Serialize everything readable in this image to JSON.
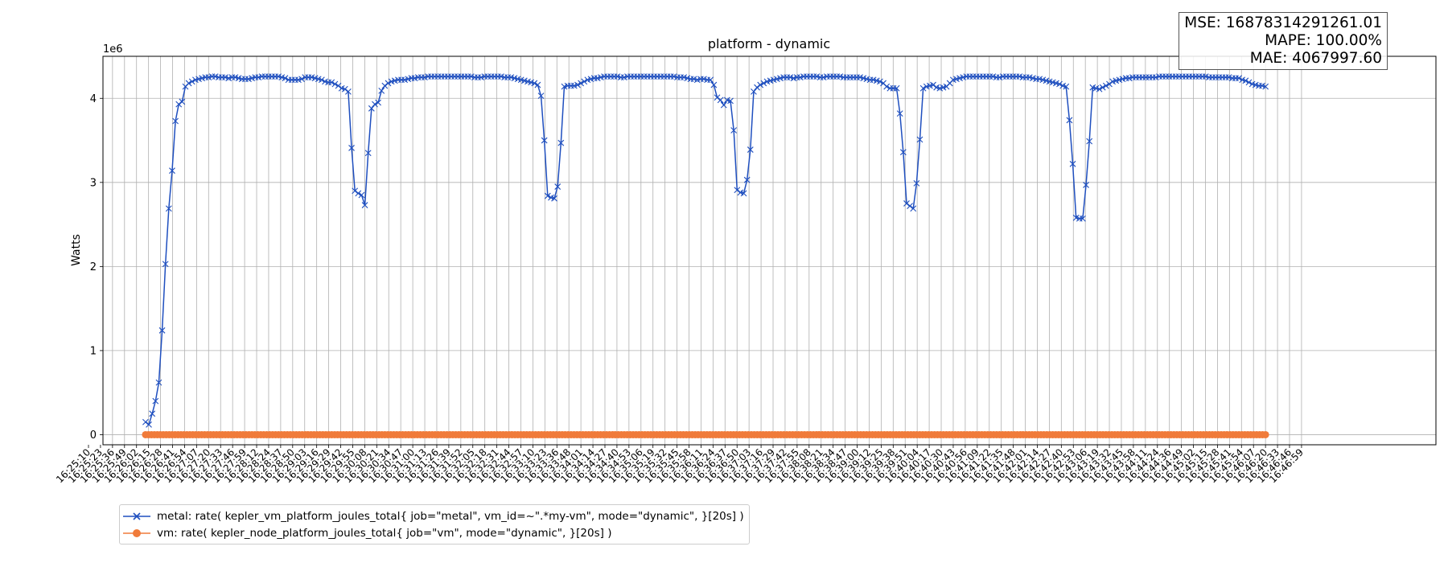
{
  "chart_data": {
    "type": "line",
    "title": "platform - dynamic",
    "xlabel": "",
    "ylabel": "Watts",
    "y_offset_label": "1e6",
    "ylim": [
      -0.12,
      4.5
    ],
    "yticks": [
      0,
      1,
      2,
      3,
      4
    ],
    "grid": true,
    "legend_position": "lower-left, outside",
    "stats": {
      "mse": "MSE: 16878314291261.01",
      "mape": "MAPE: 100.00%",
      "mae": "MAE: 4067997.60"
    },
    "x_tick_labels": [
      "16:25:10",
      "16:25:23",
      "16:25:36",
      "16:25:49",
      "16:26:02",
      "16:26:15",
      "16:26:28",
      "16:26:41",
      "16:26:54",
      "16:27:07",
      "16:27:20",
      "16:27:33",
      "16:27:46",
      "16:27:59",
      "16:28:12",
      "16:28:24",
      "16:28:37",
      "16:28:50",
      "16:29:03",
      "16:29:16",
      "16:29:29",
      "16:29:42",
      "16:29:55",
      "16:30:08",
      "16:30:21",
      "16:30:34",
      "16:30:47",
      "16:31:00",
      "16:31:13",
      "16:31:26",
      "16:31:39",
      "16:31:52",
      "16:32:05",
      "16:32:18",
      "16:32:31",
      "16:32:44",
      "16:32:57",
      "16:33:10",
      "16:33:23",
      "16:33:36",
      "16:33:48",
      "16:34:01",
      "16:34:14",
      "16:34:27",
      "16:34:40",
      "16:34:53",
      "16:35:06",
      "16:35:19",
      "16:35:32",
      "16:35:45",
      "16:35:58",
      "16:36:11",
      "16:36:24",
      "16:36:37",
      "16:36:50",
      "16:37:03",
      "16:37:16",
      "16:37:29",
      "16:37:42",
      "16:37:55",
      "16:38:08",
      "16:38:21",
      "16:38:34",
      "16:38:47",
      "16:39:00",
      "16:39:12",
      "16:39:25",
      "16:39:38",
      "16:39:51",
      "16:40:04",
      "16:40:17",
      "16:40:30",
      "16:40:43",
      "16:40:56",
      "16:41:09",
      "16:41:22",
      "16:41:35",
      "16:41:48",
      "16:42:01",
      "16:42:14",
      "16:42:27",
      "16:42:40",
      "16:42:53",
      "16:43:06",
      "16:43:19",
      "16:43:32",
      "16:43:45",
      "16:43:58",
      "16:44:11",
      "16:44:24",
      "16:44:36",
      "16:44:49",
      "16:45:02",
      "16:45:15",
      "16:45:28",
      "16:45:41",
      "16:45:54",
      "16:46:07",
      "16:46:20",
      "16:46:33",
      "16:46:46",
      "16:46:59"
    ],
    "series": [
      {
        "name": "metal: rate( kepler_vm_platform_joules_total{ job=\"metal\", vm_id=~\".*my-vm\", mode=\"dynamic\", }[20s] )",
        "color": "#1f4fbf",
        "marker": "x",
        "x_start_index": 4.75,
        "x_end_index": 98.0,
        "values": [
          0.15,
          0.12,
          0.25,
          0.4,
          0.62,
          1.24,
          2.03,
          2.69,
          3.14,
          3.73,
          3.93,
          3.96,
          4.14,
          4.18,
          4.2,
          4.22,
          4.23,
          4.24,
          4.25,
          4.25,
          4.26,
          4.26,
          4.25,
          4.25,
          4.25,
          4.24,
          4.25,
          4.25,
          4.24,
          4.23,
          4.23,
          4.23,
          4.24,
          4.25,
          4.25,
          4.26,
          4.26,
          4.26,
          4.26,
          4.26,
          4.26,
          4.25,
          4.24,
          4.22,
          4.22,
          4.22,
          4.22,
          4.23,
          4.25,
          4.25,
          4.25,
          4.24,
          4.23,
          4.22,
          4.2,
          4.19,
          4.19,
          4.17,
          4.15,
          4.12,
          4.11,
          4.08,
          3.41,
          2.9,
          2.87,
          2.85,
          2.73,
          3.35,
          3.88,
          3.93,
          3.95,
          4.09,
          4.15,
          4.18,
          4.2,
          4.21,
          4.22,
          4.22,
          4.22,
          4.23,
          4.24,
          4.24,
          4.25,
          4.25,
          4.25,
          4.26,
          4.26,
          4.26,
          4.26,
          4.26,
          4.26,
          4.26,
          4.26,
          4.26,
          4.26,
          4.26,
          4.26,
          4.26,
          4.26,
          4.25,
          4.25,
          4.25,
          4.26,
          4.26,
          4.26,
          4.26,
          4.26,
          4.26,
          4.25,
          4.25,
          4.25,
          4.24,
          4.23,
          4.22,
          4.21,
          4.2,
          4.19,
          4.18,
          4.16,
          4.03,
          3.5,
          2.84,
          2.82,
          2.81,
          2.95,
          3.47,
          4.14,
          4.15,
          4.15,
          4.15,
          4.16,
          4.18,
          4.2,
          4.22,
          4.23,
          4.24,
          4.24,
          4.25,
          4.26,
          4.26,
          4.26,
          4.26,
          4.26,
          4.25,
          4.25,
          4.26,
          4.26,
          4.26,
          4.26,
          4.26,
          4.26,
          4.26,
          4.26,
          4.26,
          4.26,
          4.26,
          4.26,
          4.26,
          4.26,
          4.26,
          4.25,
          4.25,
          4.25,
          4.24,
          4.23,
          4.23,
          4.22,
          4.23,
          4.23,
          4.22,
          4.22,
          4.16,
          4.01,
          3.98,
          3.92,
          3.98,
          3.97,
          3.62,
          2.91,
          2.88,
          2.87,
          3.03,
          3.39,
          4.08,
          4.13,
          4.16,
          4.18,
          4.2,
          4.21,
          4.22,
          4.23,
          4.24,
          4.25,
          4.25,
          4.25,
          4.24,
          4.25,
          4.25,
          4.26,
          4.26,
          4.26,
          4.26,
          4.26,
          4.25,
          4.25,
          4.26,
          4.26,
          4.26,
          4.26,
          4.26,
          4.25,
          4.25,
          4.25,
          4.25,
          4.25,
          4.25,
          4.24,
          4.23,
          4.22,
          4.22,
          4.21,
          4.2,
          4.18,
          4.14,
          4.12,
          4.12,
          4.12,
          3.82,
          3.36,
          2.75,
          2.72,
          2.69,
          2.99,
          3.51,
          4.12,
          4.14,
          4.15,
          4.16,
          4.13,
          4.12,
          4.13,
          4.14,
          4.18,
          4.22,
          4.23,
          4.24,
          4.25,
          4.26,
          4.26,
          4.26,
          4.26,
          4.26,
          4.26,
          4.26,
          4.26,
          4.26,
          4.25,
          4.25,
          4.26,
          4.26,
          4.26,
          4.26,
          4.26,
          4.26,
          4.25,
          4.25,
          4.25,
          4.24,
          4.23,
          4.23,
          4.22,
          4.21,
          4.2,
          4.19,
          4.18,
          4.17,
          4.15,
          4.14,
          3.74,
          3.22,
          2.58,
          2.57,
          2.57,
          2.97,
          3.49,
          4.13,
          4.12,
          4.11,
          4.13,
          4.15,
          4.17,
          4.2,
          4.21,
          4.22,
          4.23,
          4.24,
          4.24,
          4.25,
          4.25,
          4.25,
          4.25,
          4.25,
          4.25,
          4.25,
          4.25,
          4.26,
          4.26,
          4.26,
          4.26,
          4.26,
          4.26,
          4.26,
          4.26,
          4.26,
          4.26,
          4.26,
          4.26,
          4.26,
          4.26,
          4.26,
          4.25,
          4.25,
          4.25,
          4.25,
          4.25,
          4.25,
          4.25,
          4.24,
          4.24,
          4.24,
          4.22,
          4.21,
          4.19,
          4.17,
          4.16,
          4.15,
          4.15,
          4.14
        ]
      },
      {
        "name": "vm: rate( kepler_node_platform_joules_total{ job=\"vm\", mode=\"dynamic\", }[20s] )",
        "color": "#f07b3a",
        "marker": "o",
        "x_start_index": 4.75,
        "x_end_index": 98.0,
        "constant_value": 0,
        "count": 380
      }
    ]
  }
}
